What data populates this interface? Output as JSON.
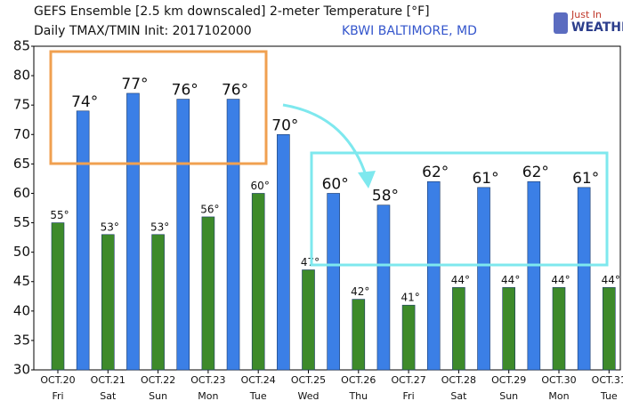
{
  "chart_data": {
    "type": "bar",
    "title": "GEFS Ensemble [2.5 km downscaled] 2-meter Temperature [°F]",
    "subtitle": "Daily TMAX/TMIN Init: 2017102000",
    "station": "KBWI BALTIMORE, MD",
    "logo": [
      "Just In",
      "WEATHER"
    ],
    "categories": [
      "OCT.20",
      "OCT.21",
      "OCT.22",
      "OCT.23",
      "OCT.24",
      "OCT.25",
      "OCT.26",
      "OCT.27",
      "OCT.28",
      "OCT.29",
      "OCT.30",
      "OCT.31"
    ],
    "weekdays": [
      "Fri",
      "Sat",
      "Sun",
      "Mon",
      "Tue",
      "Wed",
      "Thu",
      "Fri",
      "Sat",
      "Sun",
      "Mon",
      "Tue"
    ],
    "series": [
      {
        "color": "#3d8a2a",
        "values": [
          55,
          53,
          53,
          56,
          60,
          47,
          42,
          41,
          44,
          44,
          44,
          44
        ],
        "value_labels": [
          "55°",
          "53°",
          "53°",
          "56°",
          "60°",
          "47°",
          "42°",
          "41°",
          "44°",
          "44°",
          "44°",
          "44°"
        ]
      },
      {
        "color": "#3b7fe6",
        "values": [
          74,
          77,
          76,
          76,
          70,
          60,
          58,
          62,
          61,
          62,
          61,
          null
        ],
        "value_labels": [
          "74°",
          "77°",
          "76°",
          "76°",
          "70°",
          "60°",
          "58°",
          "62°",
          "61°",
          "62°",
          "61°",
          null
        ]
      }
    ],
    "ylim": [
      30,
      85
    ],
    "yticks": [
      30,
      35,
      40,
      45,
      50,
      55,
      60,
      65,
      70,
      75,
      80,
      85
    ]
  }
}
